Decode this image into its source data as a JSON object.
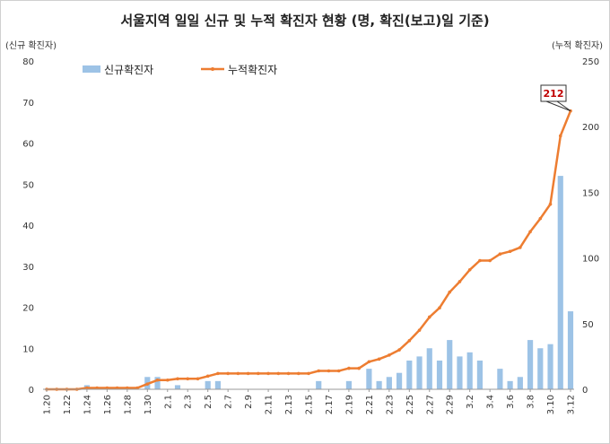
{
  "chart_data": {
    "type": "bar+line",
    "title": "서울지역 일일 신규 및 누적 확진자 현황 (명, 확진(보고)일 기준)",
    "ylabel_left": "(신규 확진자)",
    "ylabel_right": "(누적 확진자)",
    "ylim_left": [
      0,
      80
    ],
    "ylim_right": [
      0,
      250
    ],
    "yticks_left": [
      0,
      10,
      20,
      30,
      40,
      50,
      60,
      70,
      80
    ],
    "yticks_right": [
      0,
      50,
      100,
      150,
      200,
      250
    ],
    "dates": [
      "1.20",
      "1.21",
      "1.22",
      "1.23",
      "1.24",
      "1.25",
      "1.26",
      "1.27",
      "1.28",
      "1.29",
      "1.30",
      "1.31",
      "2.1",
      "2.2",
      "2.3",
      "2.4",
      "2.5",
      "2.6",
      "2.7",
      "2.8",
      "2.9",
      "2.10",
      "2.11",
      "2.12",
      "2.13",
      "2.14",
      "2.15",
      "2.16",
      "2.17",
      "2.18",
      "2.19",
      "2.20",
      "2.21",
      "2.22",
      "2.23",
      "2.24",
      "2.25",
      "2.26",
      "2.27",
      "2.28",
      "2.29",
      "3.1",
      "3.2",
      "3.3",
      "3.4",
      "3.5",
      "3.6",
      "3.7",
      "3.8",
      "3.9",
      "3.10",
      "3.11",
      "3.12"
    ],
    "xtick_labels": [
      "1.20",
      "1.22",
      "1.24",
      "1.26",
      "1.28",
      "1.30",
      "2.1",
      "2.3",
      "2.5",
      "2.7",
      "2.9",
      "2.11",
      "2.13",
      "2.15",
      "2.17",
      "2.19",
      "2.21",
      "2.23",
      "2.25",
      "2.27",
      "2.29",
      "3.2",
      "3.4",
      "3.6",
      "3.8",
      "3.10",
      "3.12"
    ],
    "series": [
      {
        "name": "신규확진자",
        "type": "bar",
        "axis": "left",
        "color": "#9dc3e6",
        "values": [
          0,
          0,
          0,
          0,
          1,
          0,
          0,
          0,
          0,
          0,
          3,
          3,
          0,
          1,
          0,
          0,
          2,
          2,
          0,
          0,
          0,
          0,
          0,
          0,
          0,
          0,
          0,
          2,
          0,
          0,
          2,
          0,
          5,
          2,
          3,
          4,
          7,
          8,
          10,
          7,
          12,
          8,
          9,
          7,
          0,
          5,
          2,
          3,
          12,
          10,
          11,
          52,
          19
        ]
      },
      {
        "name": "누적확진자",
        "type": "line",
        "axis": "right",
        "color": "#ed7d31",
        "values": [
          0,
          0,
          0,
          0,
          1,
          1,
          1,
          1,
          1,
          1,
          4,
          7,
          7,
          8,
          8,
          8,
          10,
          12,
          12,
          12,
          12,
          12,
          12,
          12,
          12,
          12,
          12,
          14,
          14,
          14,
          16,
          16,
          21,
          23,
          26,
          30,
          37,
          45,
          55,
          62,
          74,
          82,
          91,
          98,
          98,
          103,
          105,
          108,
          120,
          130,
          141,
          193,
          212
        ]
      }
    ],
    "callout": "212",
    "legend": "top-left"
  }
}
